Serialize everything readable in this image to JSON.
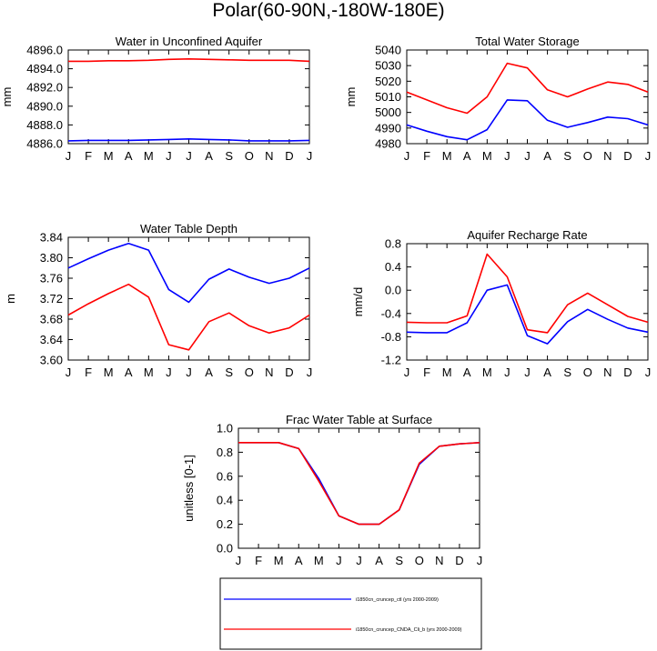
{
  "page_title": "Polar(60-90N,-180W-180E)",
  "months": [
    "J",
    "F",
    "M",
    "A",
    "M",
    "J",
    "J",
    "A",
    "S",
    "O",
    "N",
    "D",
    "J"
  ],
  "legend": {
    "items": [
      {
        "label": "i1850cn_cruncep_ctl (yrs 2000-2009)",
        "color": "#0000ff"
      },
      {
        "label": "i1850cn_cruncep_CNDA_Cli_b (yrs 2000-2009)",
        "color": "#ff0000"
      }
    ]
  },
  "chart_data": [
    {
      "type": "line",
      "title": "Water in Unconfined Aquifer",
      "ylabel": "mm",
      "ylim": [
        4886.0,
        4896.0
      ],
      "yticks": [
        4886.0,
        4888.0,
        4890.0,
        4892.0,
        4894.0,
        4896.0
      ],
      "ytick_labels": [
        "4886.0",
        "4888.0",
        "4890.0",
        "4892.0",
        "4894.0",
        "4896.0"
      ],
      "categories": [
        "J",
        "F",
        "M",
        "A",
        "M",
        "J",
        "J",
        "A",
        "S",
        "O",
        "N",
        "D",
        "J"
      ],
      "series": [
        {
          "color": "#0000ff",
          "values": [
            4886.3,
            4886.35,
            4886.35,
            4886.35,
            4886.4,
            4886.45,
            4886.5,
            4886.45,
            4886.4,
            4886.3,
            4886.3,
            4886.3,
            4886.35
          ]
        },
        {
          "color": "#ff0000",
          "values": [
            4894.8,
            4894.8,
            4894.85,
            4894.85,
            4894.9,
            4895.0,
            4895.05,
            4895.0,
            4894.95,
            4894.9,
            4894.9,
            4894.9,
            4894.8
          ]
        }
      ]
    },
    {
      "type": "line",
      "title": "Total Water Storage",
      "ylabel": "mm",
      "ylim": [
        4980,
        5040
      ],
      "yticks": [
        4980,
        4990,
        5000,
        5010,
        5020,
        5030,
        5040
      ],
      "ytick_labels": [
        "4980",
        "4990",
        "5000",
        "5010",
        "5020",
        "5030",
        "5040"
      ],
      "categories": [
        "J",
        "F",
        "M",
        "A",
        "M",
        "J",
        "J",
        "A",
        "S",
        "O",
        "N",
        "D",
        "J"
      ],
      "series": [
        {
          "color": "#0000ff",
          "values": [
            4992,
            4988,
            4984.5,
            4982.5,
            4989,
            5008,
            5007.5,
            4995,
            4990.5,
            4993.5,
            4997,
            4996,
            4992
          ]
        },
        {
          "color": "#ff0000",
          "values": [
            5013,
            5008,
            5003,
            4999.5,
            5010,
            5031.5,
            5028.5,
            5014.5,
            5010,
            5015,
            5019.5,
            5018,
            5013
          ]
        }
      ]
    },
    {
      "type": "line",
      "title": "Water Table Depth",
      "ylabel": "m",
      "ylim": [
        3.6,
        3.84
      ],
      "yticks": [
        3.6,
        3.64,
        3.68,
        3.72,
        3.76,
        3.8,
        3.84
      ],
      "ytick_labels": [
        "3.60",
        "3.64",
        "3.68",
        "3.72",
        "3.76",
        "3.80",
        "3.84"
      ],
      "categories": [
        "J",
        "F",
        "M",
        "A",
        "M",
        "J",
        "J",
        "A",
        "S",
        "O",
        "N",
        "D",
        "J"
      ],
      "series": [
        {
          "color": "#0000ff",
          "values": [
            3.78,
            3.798,
            3.815,
            3.828,
            3.815,
            3.738,
            3.713,
            3.758,
            3.778,
            3.762,
            3.75,
            3.76,
            3.78
          ]
        },
        {
          "color": "#ff0000",
          "values": [
            3.688,
            3.71,
            3.73,
            3.748,
            3.723,
            3.63,
            3.62,
            3.675,
            3.692,
            3.667,
            3.653,
            3.663,
            3.688
          ]
        }
      ]
    },
    {
      "type": "line",
      "title": "Aquifer Recharge Rate",
      "ylabel": "mm/d",
      "ylim": [
        -1.2,
        0.8
      ],
      "yticks": [
        -1.2,
        -0.8,
        -0.4,
        0.0,
        0.4,
        0.8
      ],
      "ytick_labels": [
        "-1.2",
        "-0.8",
        "-0.4",
        "0.0",
        "0.4",
        "0.8"
      ],
      "categories": [
        "J",
        "F",
        "M",
        "A",
        "M",
        "J",
        "J",
        "A",
        "S",
        "O",
        "N",
        "D",
        "J"
      ],
      "series": [
        {
          "color": "#0000ff",
          "values": [
            -0.72,
            -0.73,
            -0.73,
            -0.56,
            0.0,
            0.09,
            -0.78,
            -0.92,
            -0.54,
            -0.33,
            -0.5,
            -0.65,
            -0.72
          ]
        },
        {
          "color": "#ff0000",
          "values": [
            -0.55,
            -0.56,
            -0.56,
            -0.44,
            0.62,
            0.23,
            -0.68,
            -0.73,
            -0.25,
            -0.05,
            -0.25,
            -0.45,
            -0.55
          ]
        }
      ]
    },
    {
      "type": "line",
      "title": "Frac Water Table at Surface",
      "ylabel": "unitless [0-1]",
      "ylim": [
        0.0,
        1.0
      ],
      "yticks": [
        0.0,
        0.2,
        0.4,
        0.6,
        0.8,
        1.0
      ],
      "ytick_labels": [
        "0.0",
        "0.2",
        "0.4",
        "0.6",
        "0.8",
        "1.0"
      ],
      "categories": [
        "J",
        "F",
        "M",
        "A",
        "M",
        "J",
        "J",
        "A",
        "S",
        "O",
        "N",
        "D",
        "J"
      ],
      "series": [
        {
          "color": "#0000ff",
          "values": [
            0.88,
            0.88,
            0.88,
            0.83,
            0.58,
            0.27,
            0.2,
            0.2,
            0.32,
            0.7,
            0.85,
            0.87,
            0.88
          ]
        },
        {
          "color": "#ff0000",
          "values": [
            0.88,
            0.88,
            0.88,
            0.83,
            0.56,
            0.27,
            0.2,
            0.2,
            0.32,
            0.71,
            0.85,
            0.87,
            0.88
          ]
        }
      ]
    }
  ]
}
